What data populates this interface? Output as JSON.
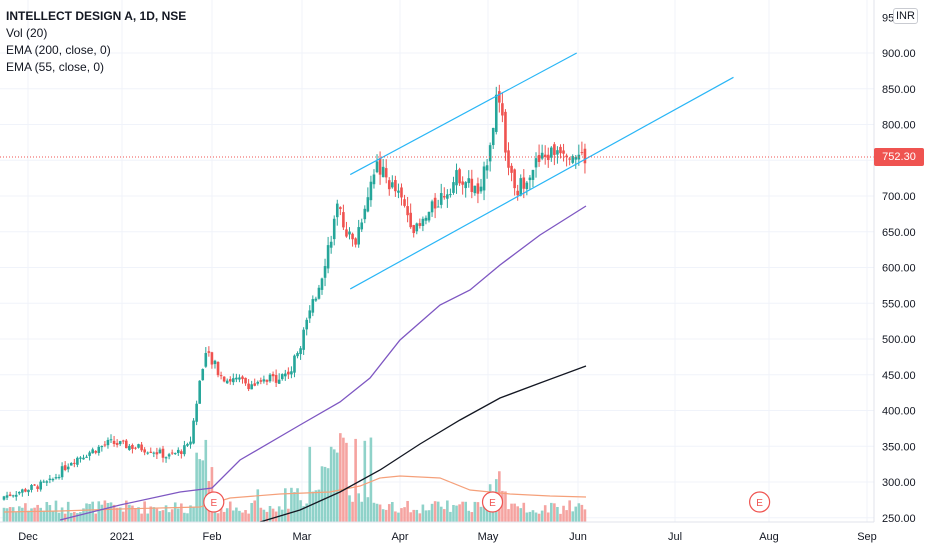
{
  "legend": {
    "symbol": "INTELLECT DESIGN A, 1D, NSE",
    "volume": "Vol (20)",
    "ema200": "EMA (200, close, 0)",
    "ema55": "EMA (55, close, 0)"
  },
  "currency": "INR",
  "last_price_label": "752.30",
  "colors": {
    "up": "#26a69a",
    "down": "#ef5350",
    "vol_up": "#8fd2c9",
    "vol_down": "#f5a3a0",
    "vol_ma": "#f5a07a",
    "ema200": "#131722",
    "ema55": "#7e57c2",
    "trendline": "#29b6f6",
    "earnings": "#ef5350"
  },
  "chart_data": {
    "type": "candlestick",
    "y_axis_ticks": [
      "250.00",
      "300.00",
      "350.00",
      "400.00",
      "450.00",
      "500.00",
      "550.00",
      "600.00",
      "650.00",
      "700.00",
      "750.00",
      "800.00",
      "850.00",
      "900.00"
    ],
    "y_axis_top_label": "950",
    "ylim": [
      250,
      950
    ],
    "x_axis_labels": [
      "Dec",
      "2021",
      "Feb",
      "Mar",
      "Apr",
      "May",
      "Jun",
      "Jul",
      "Aug",
      "Sep"
    ],
    "last_price": 752.3,
    "earnings_marker_label": "E",
    "earnings_markers": [
      "2021-02-03",
      "2021-05-10",
      "2021-08-10"
    ],
    "key_price_points": [
      {
        "period": "Dec 2020",
        "price": 280
      },
      {
        "period": "early Jan 2021",
        "price": 330
      },
      {
        "period": "mid Jan 2021",
        "price": 355
      },
      {
        "period": "end Jan 2021",
        "price": 340
      },
      {
        "period": "early Feb 2021",
        "price": 480
      },
      {
        "period": "late Feb 2021",
        "price": 440
      },
      {
        "period": "mid Mar 2021",
        "price": 560
      },
      {
        "period": "late Mar 2021",
        "price": 700
      },
      {
        "period": "early Apr 2021",
        "price": 755
      },
      {
        "period": "mid Apr 2021",
        "price": 680
      },
      {
        "period": "early May 2021",
        "price": 840
      },
      {
        "period": "mid May 2021",
        "price": 700
      },
      {
        "period": "late May 2021",
        "price": 780
      },
      {
        "period": "early Jun 2021",
        "price": 752.3
      }
    ],
    "ema55_end": 683,
    "ema200_end": 463,
    "channel_upper": {
      "from": {
        "date": "2021-03-22",
        "price": 730
      },
      "to": {
        "date": "2021-06-08",
        "price": 900
      }
    },
    "channel_lower": {
      "from": {
        "date": "2021-03-22",
        "price": 570
      },
      "to": {
        "date": "2021-08-01",
        "price": 866
      }
    }
  }
}
